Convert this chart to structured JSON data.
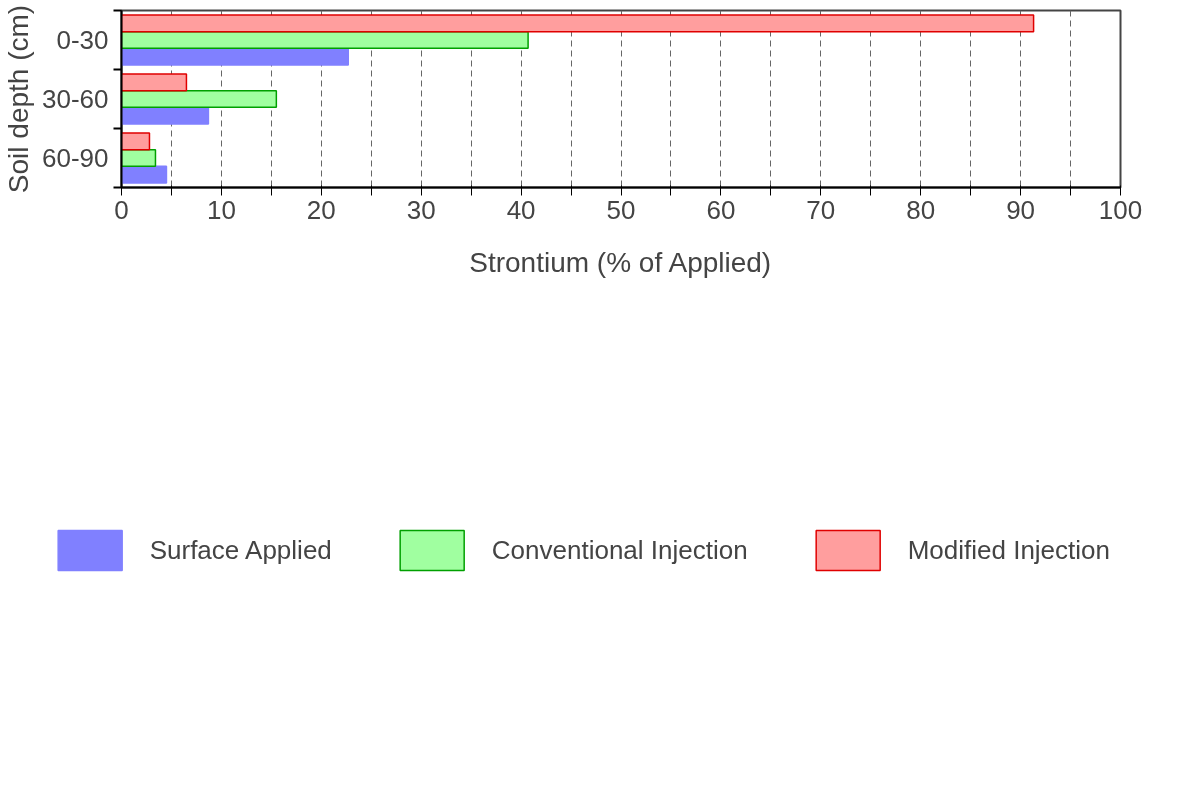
{
  "chart_data": {
    "type": "bar",
    "orientation": "horizontal",
    "xlabel": "Strontium (% of Applied)",
    "ylabel": "Soil depth (cm)",
    "categories": [
      "0-30",
      "30-60",
      "60-90"
    ],
    "series": [
      {
        "name": "Surface Applied",
        "color": "#8080ff",
        "values": [
          22.7,
          8.7,
          4.5
        ]
      },
      {
        "name": "Conventional Injection",
        "color": "#a0ffa0",
        "values": [
          40.7,
          15.5,
          3.4
        ]
      },
      {
        "name": "Modified Injection",
        "color": "#ff9e9e",
        "values": [
          91.3,
          6.5,
          2.8
        ]
      }
    ],
    "xlim": [
      0,
      100
    ],
    "xticks": [
      0,
      {
        "value": 5,
        "label": null
      },
      10,
      {
        "value": 15,
        "label": null
      },
      20,
      {
        "value": 25,
        "label": null
      },
      30,
      {
        "value": 35,
        "label": null
      },
      40,
      {
        "value": 45,
        "label": null
      },
      50,
      {
        "value": 55,
        "label": null
      },
      60,
      {
        "value": 65,
        "label": null
      },
      70,
      {
        "value": 75,
        "label": null
      },
      80,
      {
        "value": 85,
        "label": null
      },
      90,
      {
        "value": 95,
        "label": null
      },
      100
    ],
    "grid": "x",
    "legend": "bottom"
  }
}
